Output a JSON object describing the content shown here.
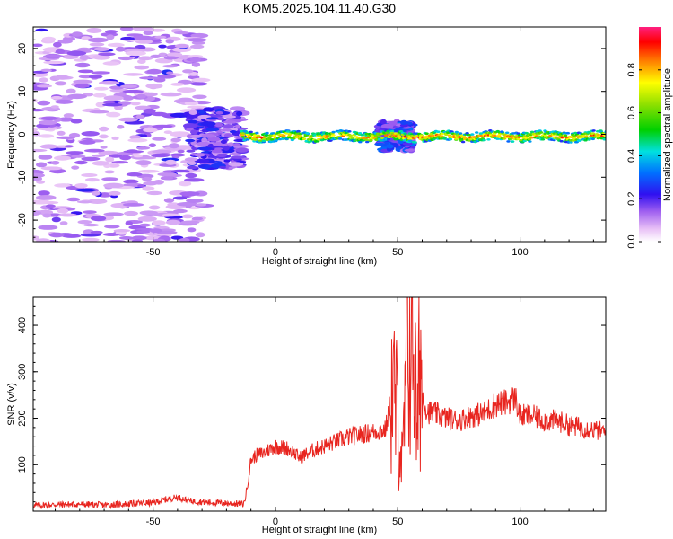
{
  "title": "KOM5.2025.104.11.40.G30",
  "chart_data": [
    {
      "type": "heatmap",
      "xlabel": "Height of straight line (km)",
      "ylabel": "Frequency (Hz)",
      "xlim": [
        -99,
        135
      ],
      "ylim": [
        -25,
        25
      ],
      "x_ticks": [
        -50,
        0,
        50,
        100
      ],
      "y_ticks": [
        -20,
        -10,
        0,
        10,
        20
      ],
      "x_tick_labels": [
        "-50",
        "0",
        "50",
        "100"
      ],
      "y_tick_labels": [
        "-20",
        "-10",
        "0",
        "10",
        "20"
      ],
      "colorbar": {
        "label": "Normalized spectral amplitude",
        "range": [
          0,
          1
        ],
        "ticks": [
          0.0,
          0.2,
          0.4,
          0.6,
          0.8
        ],
        "tick_labels": [
          "0.0",
          "0.2",
          "0.4",
          "0.6",
          "0.8"
        ]
      },
      "regions": [
        {
          "x_range": [
            -99,
            -30
          ],
          "f_range": [
            -25,
            25
          ],
          "amplitude": 0.05,
          "note": "scattered noise"
        },
        {
          "x_range": [
            -35,
            -13
          ],
          "f_range": [
            -8,
            6
          ],
          "amplitude": 0.15
        },
        {
          "x_range": [
            -14,
            135
          ],
          "f_center": -0.5,
          "f_halfwidth": 1,
          "amplitude": 0.9,
          "note": "dominant line"
        },
        {
          "x_range": [
            42,
            56
          ],
          "f_range": [
            -4,
            3
          ],
          "amplitude": 0.2
        }
      ]
    },
    {
      "type": "line",
      "xlabel": "Height of straight line (km)",
      "ylabel": "SNR (v/v)",
      "xlim": [
        -99,
        135
      ],
      "ylim": [
        0,
        460
      ],
      "x_ticks": [
        -50,
        0,
        50,
        100
      ],
      "y_ticks": [
        100,
        200,
        300,
        400
      ],
      "x_tick_labels": [
        "-50",
        "0",
        "50",
        "100"
      ],
      "y_tick_labels": [
        "100",
        "200",
        "300",
        "400"
      ],
      "series": [
        {
          "color": "#e8251f",
          "x": [
            -99,
            -90,
            -80,
            -70,
            -60,
            -50,
            -45,
            -40,
            -35,
            -30,
            -25,
            -20,
            -15,
            -13,
            -12,
            -10,
            -8,
            -5,
            0,
            5,
            10,
            15,
            20,
            25,
            30,
            35,
            40,
            45,
            48,
            50,
            52,
            54,
            55,
            56,
            57,
            58,
            59,
            60,
            62,
            65,
            70,
            75,
            80,
            85,
            90,
            95,
            98,
            100,
            105,
            110,
            115,
            120,
            125,
            130,
            135
          ],
          "y": [
            12,
            14,
            15,
            13,
            16,
            18,
            25,
            30,
            22,
            20,
            18,
            17,
            16,
            15,
            35,
            110,
            120,
            125,
            140,
            135,
            115,
            130,
            140,
            150,
            160,
            165,
            170,
            175,
            260,
            200,
            90,
            380,
            420,
            460,
            300,
            120,
            380,
            250,
            215,
            210,
            200,
            195,
            205,
            210,
            230,
            235,
            245,
            205,
            205,
            195,
            195,
            185,
            180,
            175,
            170
          ]
        }
      ]
    }
  ]
}
